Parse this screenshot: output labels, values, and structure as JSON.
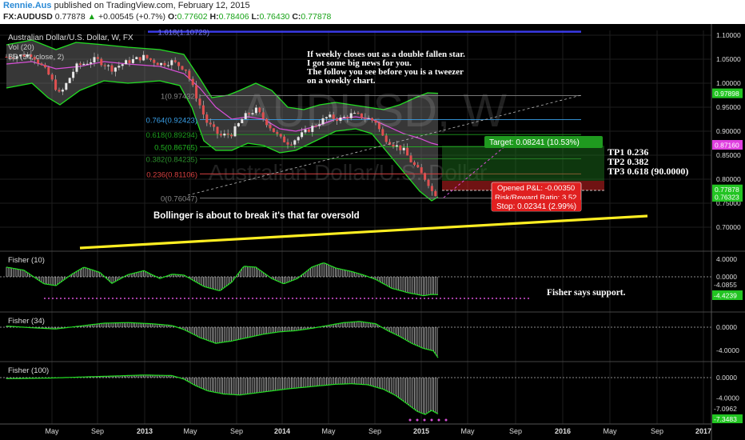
{
  "header": {
    "author": "Rennie.Aus",
    "published": "published on TradingView.com, February 12, 2015",
    "symbol": "FX:AUDUSD",
    "last": "0.77878",
    "change_arrow": "▲",
    "change": "+0.00545 (+0.7%)",
    "o_label": "O:",
    "o": "0.77602",
    "h_label": "H:",
    "h": "0.78406",
    "l_label": "L:",
    "l": "0.76430",
    "c_label": "C:",
    "c": "0.77878"
  },
  "main": {
    "title": "Australian Dollar/U.S. Dollar, W, FX",
    "vol": "Vol (20)",
    "bb": "BB (34, close, 2)",
    "watermark_big": "AUDUSD, W",
    "watermark_small": "Australian Dollar/U.S. Dollar",
    "annotation_lines": [
      "If weekly closes out as a double fallen star.",
      "I got some big news for you.",
      "The follow you see before you is a tweezer",
      "on a weekly chart."
    ],
    "bollinger_note": "Bollinger is about to break it's that far oversold",
    "tp_lines": [
      "TP1 0.236",
      "TP2 0.382",
      "TP3 0.618 (90.0000)"
    ]
  },
  "fib_levels": [
    {
      "label": "1.618(1.10729)",
      "value": 1.10729,
      "color": "#5555ee"
    },
    {
      "label": "1(0.97432)",
      "value": 0.97432,
      "color": "#888888"
    },
    {
      "label": "0.764(0.92423)",
      "value": 0.92423,
      "color": "#3aa0e8"
    },
    {
      "label": "0.618(0.89294)",
      "value": 0.89294,
      "color": "#1e9c1e"
    },
    {
      "label": "0.5(0.86765)",
      "value": 0.86765,
      "color": "#22b822"
    },
    {
      "label": "0.382(0.84235)",
      "value": 0.84235,
      "color": "#2d8f2d"
    },
    {
      "label": "0.236(0.81106)",
      "value": 0.81106,
      "color": "#d64040"
    },
    {
      "label": "0(0.76047)",
      "value": 0.76047,
      "color": "#888888"
    }
  ],
  "position": {
    "target": "Target: 0.08241 (10.53%)",
    "opened": "Opened P&L: -0.00350",
    "rr": "Risk/Reward Ratio: 3.52",
    "stop": "Stop: 0.02341 (2.99%)"
  },
  "price_axis": {
    "ticks": [
      "1.10000",
      "1.05000",
      "1.00000",
      "0.95000",
      "0.90000",
      "0.85000",
      "0.80000",
      "0.75000",
      "0.70000"
    ],
    "badges": [
      {
        "text": "0.97898",
        "value": 0.97898,
        "color": "#22c422"
      },
      {
        "text": "0.87160",
        "value": 0.8716,
        "color": "#e040e0"
      },
      {
        "text": "0.77878",
        "value": 0.77878,
        "color": "#22c422"
      },
      {
        "text": "0.76323",
        "value": 0.76323,
        "color": "#22c422"
      }
    ]
  },
  "fisher_panels": [
    {
      "title": "Fisher (10)",
      "ticks": [
        "4.0000",
        "0.0000",
        "-4.0000"
      ],
      "badges": [
        "-4.0855",
        "-4.4239"
      ],
      "note": "Fisher says support."
    },
    {
      "title": "Fisher (34)",
      "ticks": [
        "0.0000",
        "-4.0000"
      ],
      "badges": []
    },
    {
      "title": "Fisher (100)",
      "ticks": [
        "0.0000",
        "-4.0000"
      ],
      "badges": [
        "-7.0962",
        "-7.3483"
      ]
    }
  ],
  "x_axis": {
    "labels": [
      "May",
      "Sep",
      "2013",
      "May",
      "Sep",
      "2014",
      "May",
      "Sep",
      "2015",
      "May",
      "Sep",
      "2016",
      "May",
      "Sep",
      "2017"
    ]
  },
  "chart_data": {
    "type": "candlestick",
    "title": "Australian Dollar/U.S. Dollar, W, FX",
    "y_range": [
      0.67,
      1.115
    ],
    "x_range_labels": [
      "May 2012",
      "Jan 2017"
    ],
    "close_path": [
      {
        "x": "2012-02",
        "y": 1.06
      },
      {
        "x": "2012-05",
        "y": 1.0
      },
      {
        "x": "2012-08",
        "y": 1.05
      },
      {
        "x": "2012-11",
        "y": 1.04
      },
      {
        "x": "2013-01",
        "y": 1.05
      },
      {
        "x": "2013-04",
        "y": 1.04
      },
      {
        "x": "2013-05",
        "y": 0.97
      },
      {
        "x": "2013-07",
        "y": 0.9
      },
      {
        "x": "2013-08",
        "y": 0.89
      },
      {
        "x": "2013-10",
        "y": 0.95
      },
      {
        "x": "2013-12",
        "y": 0.89
      },
      {
        "x": "2014-01",
        "y": 0.87
      },
      {
        "x": "2014-04",
        "y": 0.93
      },
      {
        "x": "2014-07",
        "y": 0.94
      },
      {
        "x": "2014-09",
        "y": 0.89
      },
      {
        "x": "2014-11",
        "y": 0.85
      },
      {
        "x": "2014-12",
        "y": 0.82
      },
      {
        "x": "2015-02",
        "y": 0.77878
      }
    ],
    "trendline": {
      "from": {
        "x": "2012-06",
        "y": 0.665
      },
      "to": {
        "x": "2016-05",
        "y": 0.715
      }
    },
    "grid": true,
    "legend": "top-left"
  }
}
